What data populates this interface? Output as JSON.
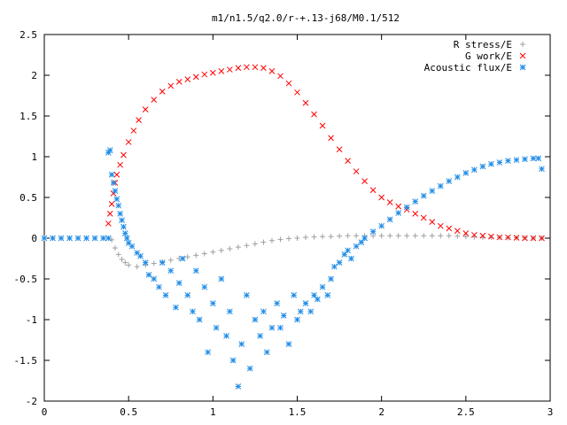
{
  "chart_data": {
    "type": "scatter",
    "title": "m1/n1.5/q2.0/r-+.13-j68/M0.1/512",
    "xlabel": "",
    "ylabel": "",
    "xlim": [
      0,
      3
    ],
    "ylim": [
      -2,
      2.5
    ],
    "x_ticks": [
      "0",
      "0.5",
      "1",
      "1.5",
      "2",
      "2.5",
      "3"
    ],
    "y_ticks": [
      "2.5",
      "2",
      "1.5",
      "1",
      "0.5",
      "0",
      "-0.5",
      "-1",
      "-1.5",
      "-2"
    ],
    "grid": false,
    "legend_position": "top-right",
    "series": [
      {
        "name": "R stress/E",
        "marker": "plus",
        "color": "#a0a0a0",
        "points": [
          [
            0.4,
            -0.02
          ],
          [
            0.42,
            -0.12
          ],
          [
            0.44,
            -0.2
          ],
          [
            0.46,
            -0.26
          ],
          [
            0.48,
            -0.3
          ],
          [
            0.5,
            -0.33
          ],
          [
            0.55,
            -0.35
          ],
          [
            0.6,
            -0.33
          ],
          [
            0.65,
            -0.31
          ],
          [
            0.7,
            -0.29
          ],
          [
            0.75,
            -0.27
          ],
          [
            0.8,
            -0.25
          ],
          [
            0.85,
            -0.23
          ],
          [
            0.9,
            -0.21
          ],
          [
            0.95,
            -0.19
          ],
          [
            1.0,
            -0.17
          ],
          [
            1.05,
            -0.15
          ],
          [
            1.1,
            -0.13
          ],
          [
            1.15,
            -0.11
          ],
          [
            1.2,
            -0.09
          ],
          [
            1.25,
            -0.07
          ],
          [
            1.3,
            -0.05
          ],
          [
            1.35,
            -0.03
          ],
          [
            1.4,
            -0.015
          ],
          [
            1.45,
            -0.005
          ],
          [
            1.5,
            0.0
          ],
          [
            1.55,
            0.01
          ],
          [
            1.6,
            0.015
          ],
          [
            1.65,
            0.02
          ],
          [
            1.7,
            0.02
          ],
          [
            1.75,
            0.025
          ],
          [
            1.8,
            0.03
          ],
          [
            1.85,
            0.03
          ],
          [
            1.9,
            0.03
          ],
          [
            1.95,
            0.03
          ],
          [
            2.0,
            0.03
          ],
          [
            2.05,
            0.03
          ],
          [
            2.1,
            0.03
          ],
          [
            2.15,
            0.03
          ],
          [
            2.2,
            0.03
          ],
          [
            2.25,
            0.03
          ],
          [
            2.3,
            0.03
          ],
          [
            2.35,
            0.03
          ],
          [
            2.4,
            0.03
          ],
          [
            2.45,
            0.025
          ],
          [
            2.5,
            0.02
          ],
          [
            2.55,
            0.015
          ],
          [
            2.6,
            0.01
          ],
          [
            2.65,
            0.01
          ],
          [
            2.7,
            0.01
          ],
          [
            2.75,
            0.005
          ],
          [
            2.8,
            0.005
          ],
          [
            2.85,
            0.005
          ],
          [
            2.9,
            0.0
          ],
          [
            2.95,
            0.0
          ]
        ]
      },
      {
        "name": "G work/E",
        "marker": "cross",
        "color": "#ff0000",
        "points": [
          [
            0.38,
            0.18
          ],
          [
            0.39,
            0.3
          ],
          [
            0.4,
            0.42
          ],
          [
            0.41,
            0.55
          ],
          [
            0.42,
            0.68
          ],
          [
            0.43,
            0.78
          ],
          [
            0.45,
            0.9
          ],
          [
            0.47,
            1.02
          ],
          [
            0.5,
            1.18
          ],
          [
            0.53,
            1.32
          ],
          [
            0.56,
            1.45
          ],
          [
            0.6,
            1.58
          ],
          [
            0.65,
            1.7
          ],
          [
            0.7,
            1.8
          ],
          [
            0.75,
            1.87
          ],
          [
            0.8,
            1.92
          ],
          [
            0.85,
            1.95
          ],
          [
            0.9,
            1.98
          ],
          [
            0.95,
            2.01
          ],
          [
            1.0,
            2.03
          ],
          [
            1.05,
            2.05
          ],
          [
            1.1,
            2.07
          ],
          [
            1.15,
            2.09
          ],
          [
            1.2,
            2.1
          ],
          [
            1.25,
            2.1
          ],
          [
            1.3,
            2.09
          ],
          [
            1.35,
            2.05
          ],
          [
            1.4,
            1.99
          ],
          [
            1.45,
            1.9
          ],
          [
            1.5,
            1.79
          ],
          [
            1.55,
            1.66
          ],
          [
            1.6,
            1.52
          ],
          [
            1.65,
            1.38
          ],
          [
            1.7,
            1.23
          ],
          [
            1.75,
            1.09
          ],
          [
            1.8,
            0.95
          ],
          [
            1.85,
            0.82
          ],
          [
            1.9,
            0.7
          ],
          [
            1.95,
            0.59
          ],
          [
            2.0,
            0.5
          ],
          [
            2.05,
            0.44
          ],
          [
            2.1,
            0.39
          ],
          [
            2.15,
            0.35
          ],
          [
            2.2,
            0.3
          ],
          [
            2.25,
            0.25
          ],
          [
            2.3,
            0.2
          ],
          [
            2.35,
            0.15
          ],
          [
            2.4,
            0.12
          ],
          [
            2.45,
            0.09
          ],
          [
            2.5,
            0.06
          ],
          [
            2.55,
            0.04
          ],
          [
            2.6,
            0.03
          ],
          [
            2.65,
            0.02
          ],
          [
            2.7,
            0.01
          ],
          [
            2.75,
            0.01
          ],
          [
            2.8,
            0.005
          ],
          [
            2.85,
            0.0
          ],
          [
            2.9,
            0.0
          ],
          [
            2.95,
            0.0
          ]
        ]
      },
      {
        "name": "Acoustic flux/E",
        "marker": "star",
        "color": "#1f8ce6",
        "points": [
          [
            0.0,
            0.0
          ],
          [
            0.05,
            0.0
          ],
          [
            0.1,
            0.0
          ],
          [
            0.15,
            0.0
          ],
          [
            0.2,
            0.0
          ],
          [
            0.25,
            0.0
          ],
          [
            0.3,
            0.0
          ],
          [
            0.35,
            0.0
          ],
          [
            0.38,
            0.0
          ],
          [
            0.38,
            1.05
          ],
          [
            0.39,
            1.08
          ],
          [
            0.4,
            0.78
          ],
          [
            0.41,
            0.68
          ],
          [
            0.42,
            0.58
          ],
          [
            0.43,
            0.48
          ],
          [
            0.44,
            0.4
          ],
          [
            0.45,
            0.3
          ],
          [
            0.46,
            0.22
          ],
          [
            0.47,
            0.14
          ],
          [
            0.48,
            0.06
          ],
          [
            0.49,
            0.0
          ],
          [
            0.5,
            -0.06
          ],
          [
            0.52,
            -0.1
          ],
          [
            0.55,
            -0.18
          ],
          [
            0.57,
            -0.22
          ],
          [
            0.6,
            -0.3
          ],
          [
            0.62,
            -0.45
          ],
          [
            0.65,
            -0.5
          ],
          [
            0.68,
            -0.6
          ],
          [
            0.7,
            -0.3
          ],
          [
            0.72,
            -0.7
          ],
          [
            0.75,
            -0.4
          ],
          [
            0.78,
            -0.85
          ],
          [
            0.8,
            -0.55
          ],
          [
            0.82,
            -0.25
          ],
          [
            0.85,
            -0.7
          ],
          [
            0.88,
            -0.9
          ],
          [
            0.9,
            -0.4
          ],
          [
            0.92,
            -1.0
          ],
          [
            0.95,
            -0.6
          ],
          [
            0.97,
            -1.4
          ],
          [
            1.0,
            -0.8
          ],
          [
            1.02,
            -1.1
          ],
          [
            1.05,
            -0.5
          ],
          [
            1.08,
            -1.2
          ],
          [
            1.1,
            -0.9
          ],
          [
            1.12,
            -1.5
          ],
          [
            1.15,
            -1.82
          ],
          [
            1.17,
            -1.3
          ],
          [
            1.2,
            -0.7
          ],
          [
            1.22,
            -1.6
          ],
          [
            1.25,
            -1.0
          ],
          [
            1.28,
            -1.2
          ],
          [
            1.3,
            -0.9
          ],
          [
            1.32,
            -1.4
          ],
          [
            1.35,
            -1.1
          ],
          [
            1.38,
            -0.8
          ],
          [
            1.4,
            -1.1
          ],
          [
            1.42,
            -0.95
          ],
          [
            1.45,
            -1.3
          ],
          [
            1.48,
            -0.7
          ],
          [
            1.5,
            -1.0
          ],
          [
            1.52,
            -0.9
          ],
          [
            1.55,
            -0.8
          ],
          [
            1.58,
            -0.9
          ],
          [
            1.6,
            -0.7
          ],
          [
            1.62,
            -0.75
          ],
          [
            1.65,
            -0.6
          ],
          [
            1.68,
            -0.7
          ],
          [
            1.7,
            -0.5
          ],
          [
            1.72,
            -0.35
          ],
          [
            1.75,
            -0.3
          ],
          [
            1.78,
            -0.2
          ],
          [
            1.8,
            -0.15
          ],
          [
            1.82,
            -0.25
          ],
          [
            1.85,
            -0.1
          ],
          [
            1.88,
            -0.05
          ],
          [
            1.9,
            0.0
          ],
          [
            1.95,
            0.08
          ],
          [
            2.0,
            0.15
          ],
          [
            2.05,
            0.23
          ],
          [
            2.1,
            0.31
          ],
          [
            2.15,
            0.38
          ],
          [
            2.2,
            0.45
          ],
          [
            2.25,
            0.52
          ],
          [
            2.3,
            0.58
          ],
          [
            2.35,
            0.64
          ],
          [
            2.4,
            0.7
          ],
          [
            2.45,
            0.75
          ],
          [
            2.5,
            0.8
          ],
          [
            2.55,
            0.84
          ],
          [
            2.6,
            0.88
          ],
          [
            2.65,
            0.91
          ],
          [
            2.7,
            0.93
          ],
          [
            2.75,
            0.95
          ],
          [
            2.8,
            0.96
          ],
          [
            2.85,
            0.97
          ],
          [
            2.9,
            0.98
          ],
          [
            2.93,
            0.98
          ],
          [
            2.95,
            0.85
          ]
        ]
      }
    ]
  }
}
